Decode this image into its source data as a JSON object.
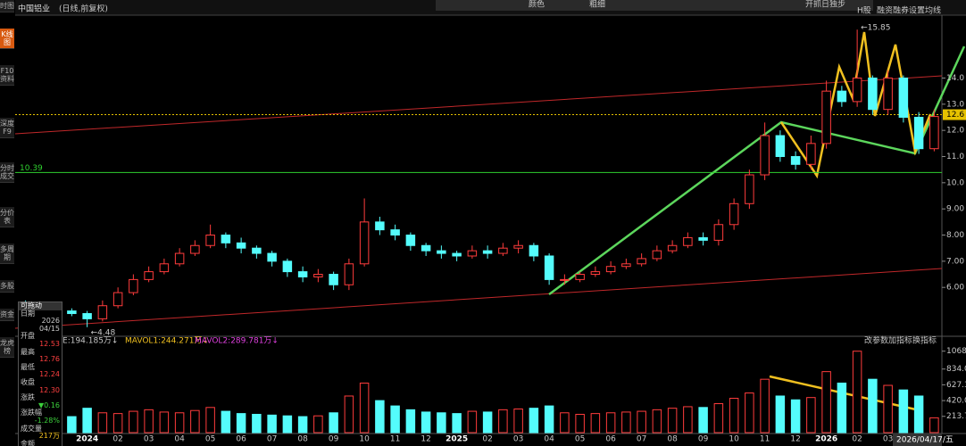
{
  "header": {
    "title": "中国铝业",
    "subtitle": "(日线,前复权)",
    "toolbar": [
      "颜色",
      "粗细",
      "开抓日独步"
    ],
    "right_buttons": [
      "H股",
      "融资融券",
      "设置均线"
    ]
  },
  "sidebar": [
    "时图",
    "K线图",
    "F10资料",
    "深度F9",
    "分时成交",
    "分价表",
    "多周期",
    "多股",
    "资金",
    "龙虎榜"
  ],
  "info_panel": {
    "title": "可拖动",
    "rows": [
      [
        "日期",
        "2026 04/15"
      ],
      [
        "开盘",
        "12.53"
      ],
      [
        "最高",
        "12.76"
      ],
      [
        "最低",
        "12.24"
      ],
      [
        "收盘",
        "12.30"
      ],
      [
        "涨跌",
        "▼0.16"
      ],
      [
        "涨跌幅",
        "-1.28%"
      ],
      [
        "成交量",
        "217万"
      ],
      [
        "金额",
        "27.0亿"
      ]
    ]
  },
  "footer_date": "2026/04/17/五",
  "chart_data": [
    {
      "type": "candlestick",
      "categories": [
        null,
        null,
        null,
        null,
        "2024",
        null,
        "02",
        null,
        "03",
        null,
        "04",
        null,
        "05",
        null,
        "06",
        null,
        "07",
        null,
        "08",
        null,
        "09",
        null,
        "10",
        null,
        "11",
        null,
        "12",
        null,
        "2025",
        null,
        "02",
        null,
        "03",
        null,
        "04",
        null,
        "05",
        null,
        "06",
        null,
        "07",
        null,
        "08",
        null,
        "09",
        null,
        "10",
        null,
        "11",
        null,
        "12",
        null,
        "2026",
        null,
        "02",
        null,
        "03",
        null,
        "04",
        null
      ],
      "open": [
        5.4,
        5.3,
        5.2,
        5.1,
        5.0,
        4.8,
        5.3,
        5.8,
        6.3,
        6.6,
        6.9,
        7.3,
        7.6,
        8.0,
        7.7,
        7.5,
        7.3,
        7.0,
        6.6,
        6.4,
        6.5,
        6.1,
        6.9,
        8.5,
        8.2,
        8.0,
        7.6,
        7.4,
        7.3,
        7.2,
        7.4,
        7.3,
        7.5,
        7.6,
        7.2,
        6.3,
        6.3,
        6.5,
        6.6,
        6.8,
        6.9,
        7.1,
        7.4,
        7.6,
        7.9,
        7.8,
        8.4,
        9.2,
        10.3,
        11.8,
        11.0,
        10.7,
        11.5,
        13.5,
        13.1,
        14.0,
        12.8,
        14.0,
        12.5,
        11.3
      ],
      "high": [
        5.5,
        5.4,
        5.3,
        5.2,
        5.1,
        5.5,
        6.0,
        6.5,
        6.8,
        7.1,
        7.5,
        7.8,
        8.4,
        8.1,
        7.9,
        7.6,
        7.4,
        7.1,
        6.8,
        6.7,
        6.6,
        7.1,
        9.4,
        8.7,
        8.4,
        8.1,
        7.7,
        7.6,
        7.4,
        7.6,
        7.6,
        7.7,
        7.8,
        7.7,
        7.3,
        6.5,
        6.6,
        6.8,
        7.0,
        7.1,
        7.3,
        7.6,
        7.8,
        8.1,
        8.1,
        8.6,
        9.4,
        10.5,
        12.3,
        12.0,
        11.2,
        11.8,
        13.9,
        13.7,
        15.85,
        14.1,
        14.3,
        14.1,
        12.7,
        12.8
      ],
      "low": [
        5.2,
        5.1,
        5.0,
        4.9,
        4.48,
        4.7,
        5.2,
        5.7,
        6.2,
        6.5,
        6.8,
        7.2,
        7.5,
        7.5,
        7.3,
        7.1,
        6.8,
        6.4,
        6.2,
        6.2,
        5.9,
        5.9,
        6.8,
        8.0,
        7.8,
        7.4,
        7.2,
        7.1,
        7.0,
        7.1,
        7.1,
        7.2,
        7.3,
        7.0,
        6.1,
        6.1,
        6.2,
        6.4,
        6.5,
        6.7,
        6.8,
        7.0,
        7.3,
        7.5,
        7.6,
        7.6,
        8.2,
        9.0,
        10.1,
        10.8,
        10.5,
        10.5,
        11.3,
        12.9,
        12.9,
        12.6,
        12.6,
        12.3,
        11.1,
        11.2
      ],
      "close": [
        5.3,
        5.2,
        5.1,
        5.0,
        4.8,
        5.3,
        5.8,
        6.3,
        6.6,
        6.9,
        7.3,
        7.6,
        8.0,
        7.7,
        7.5,
        7.3,
        7.0,
        6.6,
        6.4,
        6.5,
        6.1,
        6.9,
        8.5,
        8.2,
        8.0,
        7.6,
        7.4,
        7.3,
        7.2,
        7.4,
        7.3,
        7.5,
        7.6,
        7.2,
        6.3,
        6.3,
        6.5,
        6.6,
        6.8,
        6.9,
        7.1,
        7.4,
        7.6,
        7.9,
        7.8,
        8.4,
        9.2,
        10.3,
        11.8,
        11.0,
        10.7,
        11.5,
        13.5,
        13.1,
        14.0,
        12.8,
        14.0,
        12.5,
        11.3,
        12.53
      ],
      "up_color": "#ff3c3c",
      "down_color": "#54fcfc",
      "ylim": [
        4.2,
        16.3
      ],
      "yticks": [
        {
          "value": 14,
          "label": "14.0"
        },
        {
          "value": 13,
          "label": "13.0"
        },
        {
          "value": 12,
          "label": "12.0"
        },
        {
          "value": 11,
          "label": "11.0"
        },
        {
          "value": 10,
          "label": "10.0"
        },
        {
          "value": 9,
          "label": "9.00"
        },
        {
          "value": 8,
          "label": "8.00"
        },
        {
          "value": 7,
          "label": "7.00"
        },
        {
          "value": 6,
          "label": "6.00"
        }
      ],
      "hline": {
        "value": 10.39,
        "label": "10.39",
        "color": "#2fd12f"
      },
      "last_price": {
        "value": 12.6,
        "label": "12.6",
        "color": "#e6c200"
      },
      "min_label": "←4.48",
      "max_label": "←15.85"
    },
    {
      "type": "bar",
      "title": "VOLUME:194.185万↓",
      "mavol1": "MAVOL1:244.271万↓",
      "mavol2": "MAVOL2:289.781万↓",
      "buttons": [
        "改参数",
        "加指标",
        "换指标"
      ],
      "values": [
        200,
        190,
        180,
        210,
        320,
        260,
        250,
        280,
        300,
        270,
        260,
        290,
        330,
        280,
        250,
        240,
        230,
        220,
        210,
        220,
        260,
        480,
        650,
        420,
        350,
        300,
        270,
        260,
        250,
        280,
        270,
        300,
        310,
        320,
        350,
        260,
        240,
        250,
        260,
        270,
        280,
        300,
        320,
        340,
        330,
        380,
        450,
        520,
        700,
        480,
        430,
        460,
        800,
        650,
        1068,
        700,
        620,
        560,
        480,
        194.185
      ],
      "ylim": [
        0,
        1135
      ],
      "yticks": [
        1068.6,
        {
          "value": 834,
          "label": "834.0"
        },
        627.3,
        {
          "value": 420,
          "label": "420.0"
        },
        213.7
      ]
    }
  ]
}
